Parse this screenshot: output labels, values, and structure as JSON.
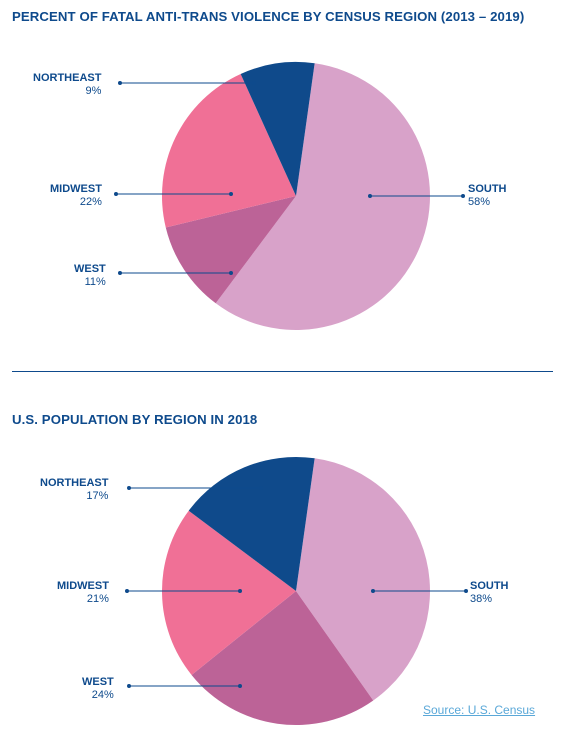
{
  "chart_data": [
    {
      "type": "pie",
      "title": "PERCENT OF FATAL ANTI-TRANS VIOLENCE BY CENSUS REGION (2013 – 2019)",
      "slices": [
        {
          "name": "SOUTH",
          "label": "58%",
          "value": 58,
          "color": "#d8a2c9"
        },
        {
          "name": "WEST",
          "label": "11%",
          "value": 11,
          "color": "#bc6397"
        },
        {
          "name": "MIDWEST",
          "label": "22%",
          "value": 22,
          "color": "#f07096"
        },
        {
          "name": "NORTHEAST",
          "label": "9%",
          "value": 9,
          "color": "#0f4a8b"
        }
      ]
    },
    {
      "type": "pie",
      "title": "U.S. POPULATION BY REGION IN 2018",
      "slices": [
        {
          "name": "SOUTH",
          "label": "38%",
          "value": 38,
          "color": "#d8a2c9"
        },
        {
          "name": "WEST",
          "label": "24%",
          "value": 24,
          "color": "#bc6397"
        },
        {
          "name": "MIDWEST",
          "label": "21%",
          "value": 21,
          "color": "#f07096"
        },
        {
          "name": "NORTHEAST",
          "label": "17%",
          "value": 17,
          "color": "#0f4a8b"
        }
      ]
    }
  ],
  "source": "Source: U.S. Census",
  "colors": {
    "text": "#0e4a8c",
    "leader": "#0e4a8c",
    "source_link": "#5aa8d8"
  }
}
